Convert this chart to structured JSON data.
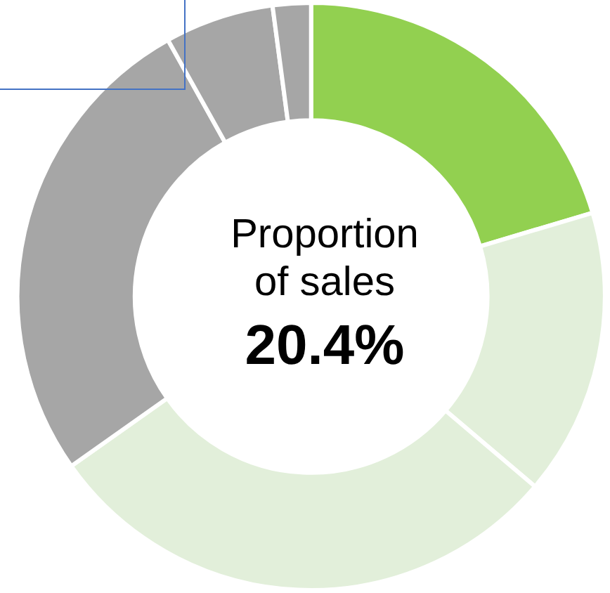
{
  "chart_data": {
    "type": "donut",
    "categories": [
      null,
      null,
      null,
      null,
      null,
      null
    ],
    "values": [
      20.4,
      15.8,
      29,
      26.7,
      6,
      2.1
    ],
    "colors": [
      "#92d050",
      "#e2efda",
      "#e2efda",
      "#a6a6a6",
      "#a6a6a6",
      "#a6a6a6"
    ],
    "annotations": [
      "Proportion of sales",
      "20.4%"
    ],
    "legend": false
  }
}
